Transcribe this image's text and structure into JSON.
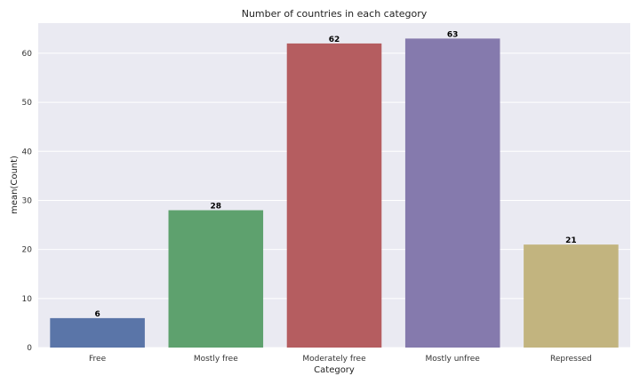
{
  "chart_data": {
    "type": "bar",
    "title": "Number of countries in each category",
    "xlabel": "Category",
    "ylabel": "mean(Count)",
    "categories": [
      "Free",
      "Mostly free",
      "Moderately free",
      "Mostly unfree",
      "Repressed"
    ],
    "values": [
      6,
      28,
      62,
      63,
      21
    ],
    "data_labels": [
      "6",
      "28",
      "62",
      "63",
      "21"
    ],
    "colors": [
      "#5a75a8",
      "#5ea16e",
      "#b55d60",
      "#857aad",
      "#c2b47f"
    ],
    "ylim": [
      0,
      66.15
    ],
    "yticks": [
      0,
      10,
      20,
      30,
      40,
      50,
      60
    ],
    "grid": true,
    "plot_background": "#eaeaf2",
    "grid_color": "#ffffff"
  }
}
